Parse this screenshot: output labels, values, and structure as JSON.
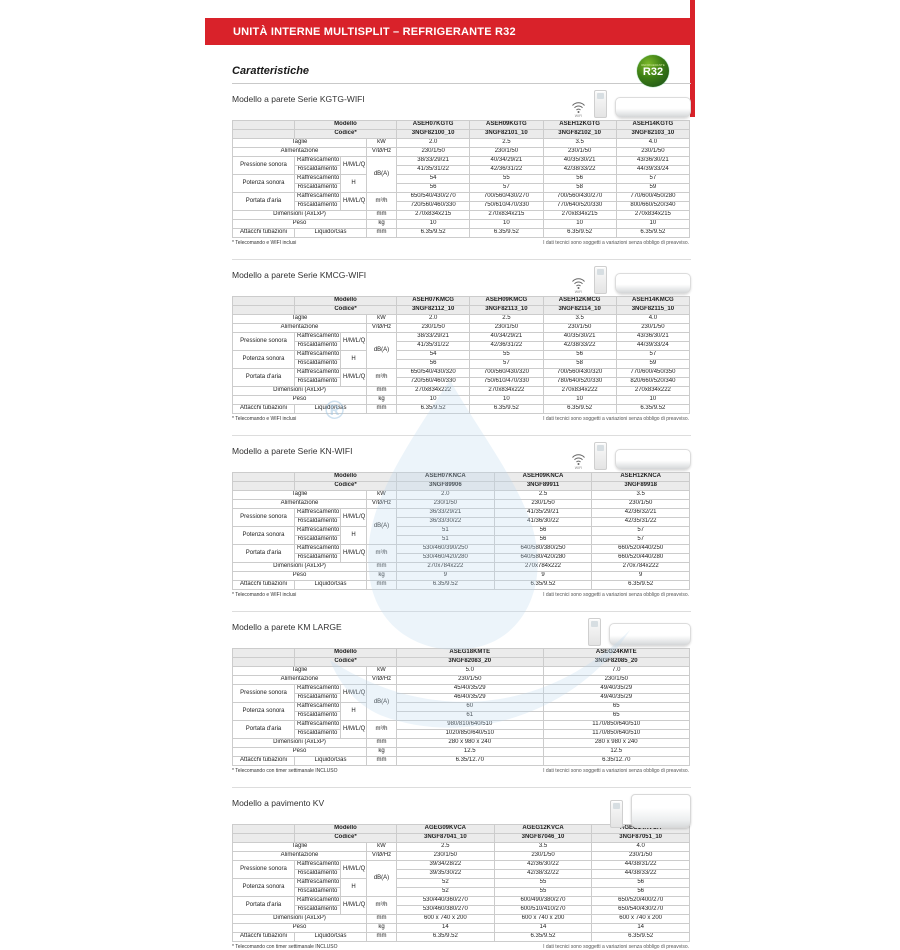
{
  "banner": {
    "title": "UNITÀ INTERNE MULTISPLIT – REFRIGERANTE R32"
  },
  "page_heading": "Caratteristiche",
  "r32_badge": {
    "small_text": "REFRIGERANTE",
    "label": "R32"
  },
  "watermark": {
    "symbol": "®"
  },
  "accent_color": "#d9222a",
  "labels": {
    "modello": "Modello",
    "codice": "Codice*",
    "taglie": "Taglie",
    "alimentazione": "Alimentazione",
    "pressione": "Pressione sonora",
    "potenza": "Potenza sonora",
    "portata": "Portata d'aria",
    "raffrescamento": "Raffrescamento",
    "riscaldamento": "Riscaldamento",
    "hmlq": "H/M/L/Q",
    "h": "H",
    "dimensioni": "Dimensioni (AxLxP)",
    "peso": "Peso",
    "attacchi": "Attacchi tubazioni",
    "liquido_gas": "Liquido/Gas",
    "wifi": "WIFI",
    "units": {
      "kw": "kW",
      "power": "V/Ø/Hz",
      "db": "dB(A)",
      "airflow": "m³/h",
      "mm": "mm",
      "kg": "kg"
    }
  },
  "footnote_right": "I dati tecnici sono soggetti a variazioni senza obbligo di preavviso.",
  "sections": [
    {
      "title": "Modello a parete Serie KGTG-WIFI",
      "footnote_left": "* Telecomando e WIFI inclusi",
      "models": [
        "ASEH07KGTG",
        "ASEH09KGTG",
        "ASEH12KGTG",
        "ASEH14KGTG"
      ],
      "codes": [
        "3NGF82100_10",
        "3NGF82101_10",
        "3NGF82102_10",
        "3NGF82103_10"
      ],
      "taglie": [
        "2.0",
        "2.5",
        "3.5",
        "4.0"
      ],
      "alimentazione": [
        "230/1/50",
        "230/1/50",
        "230/1/50",
        "230/1/50"
      ],
      "pressione_raff": [
        "38/33/29/21",
        "40/34/29/21",
        "40/35/30/21",
        "43/36/30/21"
      ],
      "pressione_risc": [
        "41/35/31/22",
        "42/36/31/22",
        "42/38/33/22",
        "44/39/33/24"
      ],
      "potenza_raff": [
        "54",
        "55",
        "56",
        "57"
      ],
      "potenza_risc": [
        "56",
        "57",
        "58",
        "59"
      ],
      "portata_raff": [
        "650/540/430/270",
        "700/560/430/270",
        "700/560/430/270",
        "770/600/450/280"
      ],
      "portata_risc": [
        "720/560/460/330",
        "750/610/470/330",
        "770/640/520/330",
        "800/660/520/340"
      ],
      "dimensioni": [
        "270x834x215",
        "270x834x215",
        "270x834x215",
        "270x834x215"
      ],
      "peso": [
        "10",
        "10",
        "10",
        "10"
      ],
      "attacchi": [
        "6.35/9.52",
        "6.35/9.52",
        "6.35/9.52",
        "6.35/9.52"
      ]
    },
    {
      "title": "Modello a parete Serie KMCG-WIFI",
      "footnote_left": "* Telecomando e WIFI inclusi",
      "models": [
        "ASEH07KMCG",
        "ASEH09KMCG",
        "ASEH12KMCG",
        "ASEH14KMCG"
      ],
      "codes": [
        "3NGF82112_10",
        "3NGF82113_10",
        "3NGF82114_10",
        "3NGF82115_10"
      ],
      "taglie": [
        "2.0",
        "2.5",
        "3.5",
        "4.0"
      ],
      "alimentazione": [
        "230/1/50",
        "230/1/50",
        "230/1/50",
        "230/1/50"
      ],
      "pressione_raff": [
        "38/33/29/21",
        "40/34/29/21",
        "40/35/30/21",
        "43/36/30/21"
      ],
      "pressione_risc": [
        "41/35/31/22",
        "42/36/31/22",
        "42/38/33/22",
        "44/39/33/24"
      ],
      "potenza_raff": [
        "54",
        "55",
        "56",
        "57"
      ],
      "potenza_risc": [
        "56",
        "57",
        "58",
        "59"
      ],
      "portata_raff": [
        "650/540/430/320",
        "700/560/430/320",
        "700/560/430/320",
        "770/600/450/350"
      ],
      "portata_risc": [
        "720/560/460/330",
        "750/610/470/330",
        "780/640/520/330",
        "820/660/520/340"
      ],
      "dimensioni": [
        "270x834x222",
        "270x834x222",
        "270x834x222",
        "270x834x222"
      ],
      "peso": [
        "10",
        "10",
        "10",
        "10"
      ],
      "attacchi": [
        "6.35/9.52",
        "6.35/9.52",
        "6.35/9.52",
        "6.35/9.52"
      ]
    },
    {
      "title": "Modello a parete Serie KN-WIFI",
      "footnote_left": "* Telecomando e WIFI inclusi",
      "models": [
        "ASEH07KNCA",
        "ASEH09KNCA",
        "ASEH12KNCA"
      ],
      "codes": [
        "3NGF89906",
        "3NGF89911",
        "3NGF89918"
      ],
      "taglie": [
        "2.0",
        "2.5",
        "3.5"
      ],
      "alimentazione": [
        "230/1/50",
        "230/1/50",
        "230/1/50"
      ],
      "pressione_raff": [
        "36/33/29/21",
        "41/35/29/21",
        "42/36/32/21"
      ],
      "pressione_risc": [
        "36/33/30/22",
        "41/36/30/22",
        "42/35/31/22"
      ],
      "potenza_raff": [
        "51",
        "56",
        "57"
      ],
      "potenza_risc": [
        "51",
        "56",
        "57"
      ],
      "portata_raff": [
        "530/460/390/250",
        "640/580/380/250",
        "660/520/440/250"
      ],
      "portata_risc": [
        "530/460/420/280",
        "640/580/420/280",
        "660/520/440/280"
      ],
      "dimensioni": [
        "270x784x222",
        "270x784x222",
        "270x784x222"
      ],
      "peso": [
        "9",
        "9",
        "9"
      ],
      "attacchi": [
        "6.35/9.52",
        "6.35/9.52",
        "6.35/9.52"
      ]
    },
    {
      "title": "Modello a parete KM LARGE",
      "footnote_left": "* Telecomando con timer settimanale INCLUSO",
      "models": [
        "ASEG18KMTE",
        "ASEG24KMTE"
      ],
      "codes": [
        "3NGF82083_20",
        "3NGF82085_20"
      ],
      "taglie": [
        "5.0",
        "7.0"
      ],
      "alimentazione": [
        "230/1/50",
        "230/1/50"
      ],
      "pressione_raff": [
        "45/40/35/29",
        "49/40/35/29"
      ],
      "pressione_risc": [
        "46/40/35/29",
        "49/40/35/29"
      ],
      "potenza_raff": [
        "60",
        "65"
      ],
      "potenza_risc": [
        "61",
        "65"
      ],
      "portata_raff": [
        "980/810/640/510",
        "1170/850/640/510"
      ],
      "portata_risc": [
        "1020/850/640/510",
        "1170/850/640/510"
      ],
      "dimensioni": [
        "280 x 980 x 240",
        "280 x 980 x 240"
      ],
      "peso": [
        "12.5",
        "12.5"
      ],
      "attacchi": [
        "6.35/12.70",
        "6.35/12.70"
      ]
    },
    {
      "title": "Modello a pavimento KV",
      "footnote_left": "* Telecomando con timer settimanale INCLUSO",
      "models": [
        "AGEG09KVCA",
        "AGEG12KVCA",
        "AGEG14KVCA"
      ],
      "codes": [
        "3NGF87041_10",
        "3NGF87046_10",
        "3NGF87051_10"
      ],
      "taglie": [
        "2.5",
        "3.5",
        "4.0"
      ],
      "alimentazione": [
        "230/1/50",
        "230/1/50",
        "230/1/50"
      ],
      "pressione_raff": [
        "39/34/28/22",
        "42/36/30/22",
        "44/38/31/22"
      ],
      "pressione_risc": [
        "39/35/30/22",
        "42/38/32/22",
        "44/38/33/22"
      ],
      "potenza_raff": [
        "52",
        "55",
        "56"
      ],
      "potenza_risc": [
        "52",
        "55",
        "56"
      ],
      "portata_raff": [
        "530/440/360/270",
        "600/490/380/270",
        "650/520/400/270"
      ],
      "portata_risc": [
        "530/460/380/270",
        "600/510/410/270",
        "650/540/430/270"
      ],
      "dimensioni": [
        "600 x 740 x 200",
        "600 x 740 x 200",
        "600 x 740 x 200"
      ],
      "peso": [
        "14",
        "14",
        "14"
      ],
      "attacchi": [
        "6.35/9.52",
        "6.35/9.52",
        "6.35/9.52"
      ]
    }
  ]
}
